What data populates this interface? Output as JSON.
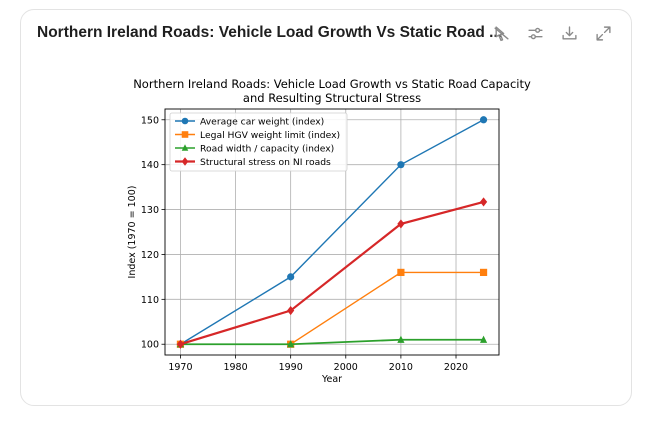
{
  "card": {
    "title": "Northern Ireland Roads: Vehicle Load Growth Vs Static Road ...",
    "toolbar": [
      {
        "name": "pin-off-icon",
        "label": "Unpin"
      },
      {
        "name": "sliders-icon",
        "label": "Adjust"
      },
      {
        "name": "download-icon",
        "label": "Download"
      },
      {
        "name": "expand-icon",
        "label": "Expand"
      }
    ]
  },
  "chart_data": {
    "type": "line",
    "title_lines": [
      "Northern Ireland Roads: Vehicle Load Growth vs Static Road Capacity",
      "and Resulting Structural Stress"
    ],
    "xlabel": "Year",
    "ylabel": "Index (1970 = 100)",
    "x": [
      1970,
      1990,
      2010,
      2025
    ],
    "xlim": [
      1967.2,
      2027.8
    ],
    "ylim": [
      97.6,
      152.4
    ],
    "xticks": [
      1970,
      1980,
      1990,
      2000,
      2010,
      2020
    ],
    "yticks": [
      100,
      110,
      120,
      130,
      140,
      150
    ],
    "grid": true,
    "legend_position": "top-left",
    "series": [
      {
        "name": "Average car weight (index)",
        "color": "#1f77b4",
        "marker": "circle",
        "values": [
          100,
          115,
          140,
          150
        ]
      },
      {
        "name": "Legal HGV weight limit (index)",
        "color": "#ff7f0e",
        "marker": "square",
        "values": [
          100,
          100,
          116,
          116
        ]
      },
      {
        "name": "Road width / capacity (index)",
        "color": "#2ca02c",
        "marker": "triangle",
        "values": [
          100,
          100,
          101,
          101
        ]
      },
      {
        "name": "Structural stress on NI roads",
        "color": "#d62728",
        "marker": "diamond",
        "values": [
          100,
          107.5,
          126.8,
          131.7
        ]
      }
    ]
  }
}
